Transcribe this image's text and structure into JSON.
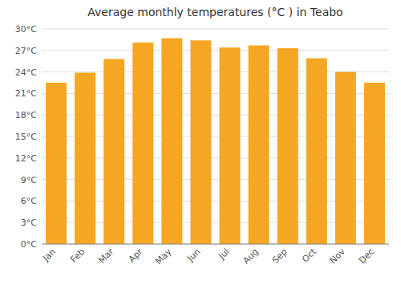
{
  "chart_data": {
    "type": "bar",
    "title": "Average monthly temperatures (°C ) in Teabo",
    "categories": [
      "Jan",
      "Feb",
      "Mar",
      "Apr",
      "May",
      "Jun",
      "Jul",
      "Aug",
      "Sep",
      "Oct",
      "Nov",
      "Dec"
    ],
    "values": [
      22.5,
      23.9,
      25.8,
      28.1,
      28.7,
      28.4,
      27.4,
      27.7,
      27.3,
      25.9,
      24.0,
      22.5
    ],
    "color": "#F5A623",
    "ylim": [
      0,
      30
    ],
    "yticks": [
      {
        "value": 0,
        "label": "0°C"
      },
      {
        "value": 3,
        "label": "3°C"
      },
      {
        "value": 6,
        "label": "6°C"
      },
      {
        "value": 9,
        "label": "9°C"
      },
      {
        "value": 12,
        "label": "12°C"
      },
      {
        "value": 15,
        "label": "15°C"
      },
      {
        "value": 18,
        "label": "18°C"
      },
      {
        "value": 21,
        "label": "21°C"
      },
      {
        "value": 24,
        "label": "24°C"
      },
      {
        "value": 27,
        "label": "27°C"
      },
      {
        "value": 30,
        "label": "30°C"
      }
    ],
    "grid": true
  }
}
